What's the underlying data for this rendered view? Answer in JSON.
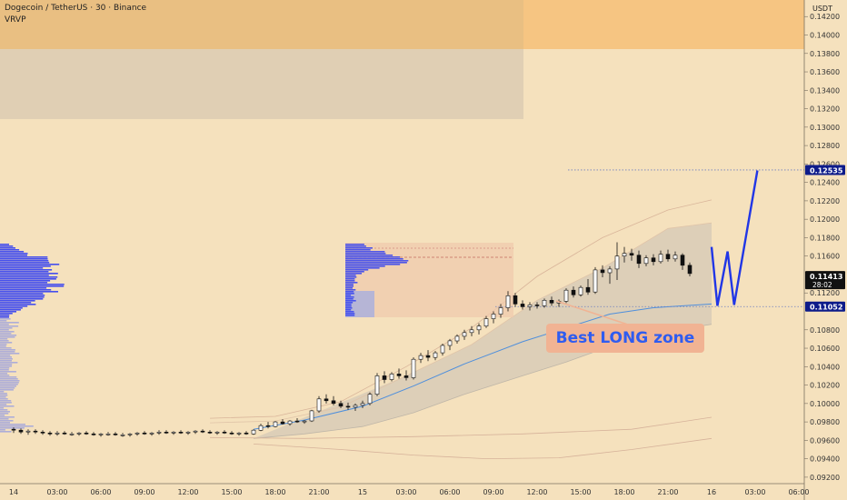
{
  "header": {
    "symbol_line": "Dogecoin / TetherUS · 30 · Binance",
    "indicator": "VRVP"
  },
  "price_axis": {
    "currency": "USDT",
    "current_price": "0.11413",
    "countdown": "28:02",
    "target_price_label": "0.12535",
    "support_price_label": "0.11052"
  },
  "annotation": {
    "text": "Best LONG zone"
  },
  "colors": {
    "background": "#f5e1bd",
    "top_zone": "#f6c582",
    "gray_zone": "#dccbb3",
    "box": "#efc9ae",
    "profile": "#3b47ef",
    "projection": "#2136e6",
    "vwap": "#4f8fdc",
    "band": "#c9c1b4",
    "candle_up": "#ffffff",
    "candle_down": "#111111",
    "callout_bg": "#f1b393",
    "callout_text": "#2f5cf0",
    "price_badge": "#0d1b8a",
    "current_badge": "#111111"
  },
  "chart_data": {
    "type": "candlestick",
    "title": "Dogecoin / TetherUS · 30 · Binance",
    "ylim": [
      0.0913,
      0.1438
    ],
    "y_ticks": [
      "0.09200",
      "0.09400",
      "0.09600",
      "0.09800",
      "0.10000",
      "0.10200",
      "0.10400",
      "0.10600",
      "0.10800",
      "0.11200",
      "0.11600",
      "0.11800",
      "0.12000",
      "0.12200",
      "0.12400",
      "0.12600",
      "0.12800",
      "0.13000",
      "0.13200",
      "0.13400",
      "0.13600",
      "0.13800",
      "0.14000",
      "0.14200"
    ],
    "x_ticks": [
      "14",
      "03:00",
      "06:00",
      "09:00",
      "12:00",
      "15:00",
      "18:00",
      "21:00",
      "15",
      "03:00",
      "06:00",
      "09:00",
      "12:00",
      "15:00",
      "18:00",
      "21:00",
      "16",
      "03:00",
      "06:00"
    ],
    "candle_interval_hours": 0.5,
    "first_candle_hour": 0,
    "candles": [
      [
        0.0972,
        0.0974,
        0.0968,
        0.0971
      ],
      [
        0.0971,
        0.0973,
        0.0967,
        0.0969
      ],
      [
        0.0969,
        0.0972,
        0.0966,
        0.097
      ],
      [
        0.097,
        0.0972,
        0.0967,
        0.0969
      ],
      [
        0.0969,
        0.0971,
        0.0966,
        0.0968
      ],
      [
        0.0968,
        0.097,
        0.0965,
        0.0967
      ],
      [
        0.0967,
        0.097,
        0.0965,
        0.0968
      ],
      [
        0.0968,
        0.097,
        0.0966,
        0.0967
      ],
      [
        0.0967,
        0.0969,
        0.0965,
        0.0967
      ],
      [
        0.0967,
        0.0969,
        0.0965,
        0.0968
      ],
      [
        0.0968,
        0.097,
        0.0966,
        0.0967
      ],
      [
        0.0967,
        0.0969,
        0.0965,
        0.0966
      ],
      [
        0.0966,
        0.0968,
        0.0964,
        0.0967
      ],
      [
        0.0967,
        0.0969,
        0.0965,
        0.0967
      ],
      [
        0.0967,
        0.0969,
        0.0965,
        0.0966
      ],
      [
        0.0966,
        0.0968,
        0.0964,
        0.0966
      ],
      [
        0.0966,
        0.0968,
        0.0964,
        0.0967
      ],
      [
        0.0967,
        0.0969,
        0.0965,
        0.0968
      ],
      [
        0.0968,
        0.097,
        0.0966,
        0.0967
      ],
      [
        0.0967,
        0.0969,
        0.0965,
        0.0968
      ],
      [
        0.0968,
        0.0971,
        0.0966,
        0.0969
      ],
      [
        0.0969,
        0.0971,
        0.0967,
        0.0968
      ],
      [
        0.0968,
        0.097,
        0.0966,
        0.0969
      ],
      [
        0.0969,
        0.0971,
        0.0967,
        0.0968
      ],
      [
        0.0968,
        0.097,
        0.0966,
        0.0969
      ],
      [
        0.0969,
        0.0971,
        0.0967,
        0.097
      ],
      [
        0.097,
        0.0972,
        0.0968,
        0.0969
      ],
      [
        0.0969,
        0.0971,
        0.0967,
        0.0968
      ],
      [
        0.0968,
        0.097,
        0.0966,
        0.0969
      ],
      [
        0.0969,
        0.0971,
        0.0967,
        0.0968
      ],
      [
        0.0968,
        0.097,
        0.0966,
        0.0967
      ],
      [
        0.0967,
        0.0969,
        0.0965,
        0.0968
      ],
      [
        0.0968,
        0.097,
        0.0966,
        0.0967
      ],
      [
        0.0967,
        0.0972,
        0.0966,
        0.0971
      ],
      [
        0.0971,
        0.0978,
        0.097,
        0.0976
      ],
      [
        0.0976,
        0.098,
        0.0973,
        0.0975
      ],
      [
        0.0975,
        0.0981,
        0.0974,
        0.098
      ],
      [
        0.098,
        0.0983,
        0.0977,
        0.0978
      ],
      [
        0.0978,
        0.0982,
        0.0976,
        0.0981
      ],
      [
        0.0981,
        0.0984,
        0.0979,
        0.098
      ],
      [
        0.098,
        0.0982,
        0.0978,
        0.0981
      ],
      [
        0.0981,
        0.0993,
        0.098,
        0.0992
      ],
      [
        0.0992,
        0.1008,
        0.099,
        0.1005
      ],
      [
        0.1005,
        0.101,
        0.1,
        0.1003
      ],
      [
        0.1003,
        0.1008,
        0.0998,
        0.1
      ],
      [
        0.1,
        0.1003,
        0.0995,
        0.0997
      ],
      [
        0.0997,
        0.1001,
        0.0993,
        0.0996
      ],
      [
        0.0996,
        0.1,
        0.0992,
        0.0998
      ],
      [
        0.0998,
        0.1003,
        0.0995,
        0.1
      ],
      [
        0.1,
        0.1012,
        0.0998,
        0.101
      ],
      [
        0.101,
        0.1033,
        0.1008,
        0.103
      ],
      [
        0.103,
        0.1035,
        0.1022,
        0.1026
      ],
      [
        0.1026,
        0.1034,
        0.1024,
        0.1032
      ],
      [
        0.1032,
        0.1038,
        0.1027,
        0.103
      ],
      [
        0.103,
        0.1036,
        0.1025,
        0.1028
      ],
      [
        0.1028,
        0.105,
        0.1026,
        0.1048
      ],
      [
        0.1048,
        0.1055,
        0.1044,
        0.1052
      ],
      [
        0.1052,
        0.1058,
        0.1046,
        0.105
      ],
      [
        0.105,
        0.1057,
        0.1047,
        0.1055
      ],
      [
        0.1055,
        0.1065,
        0.1052,
        0.1063
      ],
      [
        0.1063,
        0.107,
        0.1058,
        0.1068
      ],
      [
        0.1068,
        0.1075,
        0.1065,
        0.1073
      ],
      [
        0.1073,
        0.108,
        0.1069,
        0.1077
      ],
      [
        0.1077,
        0.1084,
        0.1073,
        0.108
      ],
      [
        0.108,
        0.1087,
        0.1075,
        0.1084
      ],
      [
        0.1084,
        0.1095,
        0.1082,
        0.1092
      ],
      [
        0.1092,
        0.11,
        0.1087,
        0.1097
      ],
      [
        0.1097,
        0.1108,
        0.1093,
        0.1104
      ],
      [
        0.1104,
        0.1122,
        0.11,
        0.1117
      ],
      [
        0.1117,
        0.112,
        0.1105,
        0.1108
      ],
      [
        0.1108,
        0.1112,
        0.1102,
        0.1105
      ],
      [
        0.1105,
        0.111,
        0.1101,
        0.1107
      ],
      [
        0.1107,
        0.111,
        0.1103,
        0.1106
      ],
      [
        0.1106,
        0.1114,
        0.1104,
        0.1112
      ],
      [
        0.1112,
        0.1116,
        0.1106,
        0.1109
      ],
      [
        0.1109,
        0.1113,
        0.1105,
        0.1111
      ],
      [
        0.1111,
        0.1125,
        0.1109,
        0.1123
      ],
      [
        0.1123,
        0.1127,
        0.1115,
        0.1118
      ],
      [
        0.1118,
        0.1128,
        0.1116,
        0.1126
      ],
      [
        0.1126,
        0.1135,
        0.1118,
        0.1121
      ],
      [
        0.1121,
        0.1148,
        0.1119,
        0.1145
      ],
      [
        0.1145,
        0.115,
        0.1137,
        0.1142
      ],
      [
        0.1142,
        0.1149,
        0.113,
        0.1146
      ],
      [
        0.1146,
        0.1175,
        0.1134,
        0.116
      ],
      [
        0.116,
        0.117,
        0.1153,
        0.1163
      ],
      [
        0.1163,
        0.1168,
        0.1155,
        0.1161
      ],
      [
        0.1161,
        0.1166,
        0.1147,
        0.1152
      ],
      [
        0.1152,
        0.1161,
        0.1149,
        0.1158
      ],
      [
        0.1158,
        0.1162,
        0.115,
        0.1154
      ],
      [
        0.1154,
        0.1166,
        0.1152,
        0.1162
      ],
      [
        0.1162,
        0.1167,
        0.1154,
        0.1157
      ],
      [
        0.1157,
        0.1165,
        0.1154,
        0.1161
      ],
      [
        0.1161,
        0.1163,
        0.1145,
        0.115
      ],
      [
        0.115,
        0.1153,
        0.1138,
        0.1141
      ]
    ],
    "series": [
      {
        "name": "upper-band",
        "points": [
          [
            27,
            0.0984
          ],
          [
            36,
            0.0986
          ],
          [
            45,
            0.1002
          ],
          [
            54,
            0.104
          ],
          [
            63,
            0.1082
          ],
          [
            72,
            0.1138
          ],
          [
            81,
            0.118
          ],
          [
            90,
            0.121
          ],
          [
            96,
            0.1221
          ]
        ]
      },
      {
        "name": "upper-inner-band",
        "points": [
          [
            27,
            0.0979
          ],
          [
            36,
            0.0981
          ],
          [
            45,
            0.0996
          ],
          [
            54,
            0.103
          ],
          [
            63,
            0.1064
          ],
          [
            72,
            0.1112
          ],
          [
            81,
            0.1147
          ],
          [
            90,
            0.119
          ],
          [
            96,
            0.1196
          ]
        ]
      },
      {
        "name": "vwap",
        "points": [
          [
            33,
            0.0972
          ],
          [
            40,
            0.0982
          ],
          [
            48,
            0.0997
          ],
          [
            55,
            0.1019
          ],
          [
            62,
            0.1043
          ],
          [
            70,
            0.1067
          ],
          [
            76,
            0.1082
          ],
          [
            82,
            0.1097
          ],
          [
            88,
            0.1104
          ],
          [
            96,
            0.1108
          ]
        ]
      },
      {
        "name": "lower-inner-band",
        "points": [
          [
            33,
            0.0962
          ],
          [
            40,
            0.0967
          ],
          [
            48,
            0.0975
          ],
          [
            55,
            0.099
          ],
          [
            62,
            0.101
          ],
          [
            70,
            0.103
          ],
          [
            76,
            0.1045
          ],
          [
            82,
            0.1062
          ],
          [
            88,
            0.1076
          ],
          [
            96,
            0.1086
          ]
        ]
      },
      {
        "name": "lower-outer-1",
        "points": [
          [
            27,
            0.0963
          ],
          [
            40,
            0.0962
          ],
          [
            55,
            0.0964
          ],
          [
            70,
            0.0967
          ],
          [
            85,
            0.0972
          ],
          [
            96,
            0.0985
          ]
        ]
      },
      {
        "name": "lower-outer-2",
        "points": [
          [
            33,
            0.0956
          ],
          [
            45,
            0.095
          ],
          [
            55,
            0.0944
          ],
          [
            65,
            0.094
          ],
          [
            75,
            0.0941
          ],
          [
            85,
            0.095
          ],
          [
            96,
            0.0962
          ]
        ]
      }
    ],
    "levels": [
      {
        "name": "target",
        "price": 0.12535
      },
      {
        "name": "support",
        "price": 0.11052
      }
    ],
    "projection_path": [
      [
        0.117,
        96.0
      ],
      [
        0.1106,
        96.8
      ],
      [
        0.1165,
        98.2
      ],
      [
        0.1107,
        99.1
      ],
      [
        0.1253,
        102.3
      ]
    ]
  }
}
